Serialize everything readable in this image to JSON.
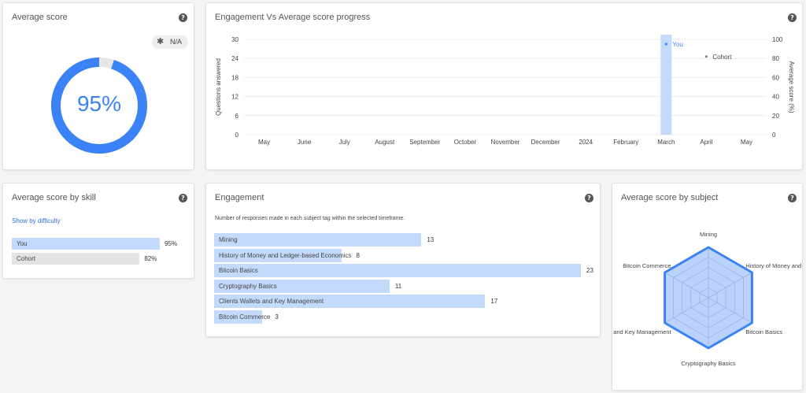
{
  "avg_score_card": {
    "title": "Average score",
    "help": "?",
    "badge_label": "N/A",
    "percent_label": "95%",
    "percent_value": 0.95,
    "ring_color": "#3b82f6"
  },
  "progress_card": {
    "title": "Engagement Vs Average score progress",
    "help": "?"
  },
  "skill_card": {
    "title": "Average score by skill",
    "help": "?",
    "toggle_link": "Show by difficulty",
    "rows": [
      {
        "label": "You",
        "value": 95,
        "value_label": "95%",
        "color": "#c4dafc"
      },
      {
        "label": "Cohort",
        "value": 82,
        "value_label": "82%",
        "color": "#e3e3e3"
      }
    ]
  },
  "engagement_card": {
    "title": "Engagement",
    "help": "?",
    "description": "Number of responses made in each subject tag within the selected timeframe.",
    "rows": [
      {
        "label": "Mining",
        "value": 13
      },
      {
        "label": "History of Money and Ledger-based Economics",
        "value": 8
      },
      {
        "label": "Bitcoin Basics",
        "value": 23
      },
      {
        "label": "Cryptography Basics",
        "value": 11
      },
      {
        "label": "Clients Wallets and Key Management",
        "value": 17
      },
      {
        "label": "Bitcoin Commerce",
        "value": 3
      }
    ]
  },
  "subject_card": {
    "title": "Average score by subject",
    "help": "?"
  },
  "chart_data": [
    {
      "type": "bar",
      "title": "Engagement Vs Average score progress",
      "categories": [
        "May",
        "June",
        "July",
        "August",
        "September",
        "October",
        "November",
        "December",
        "2024",
        "February",
        "March",
        "April",
        "May"
      ],
      "ylabel": "Questions answered",
      "y2label": "Average score (%)",
      "ylim": [
        0,
        30
      ],
      "y2lim": [
        0,
        100
      ],
      "yticks": [
        0,
        6,
        12,
        18,
        24,
        30
      ],
      "y2ticks": [
        0,
        20,
        40,
        60,
        80,
        100
      ],
      "bar_index": 10,
      "bar_value": 30,
      "grid": true,
      "series": [
        {
          "name": "You",
          "x_index": 10,
          "y2": 95,
          "color": "#3b82f6"
        },
        {
          "name": "Cohort",
          "x_index": 11,
          "y2": 82,
          "color": "#888888"
        }
      ]
    },
    {
      "type": "radar",
      "title": "Average score by subject",
      "categories": [
        "Mining",
        "History of Money and Ledger-base",
        "Bitcoin Basics",
        "Cryptography Basics",
        "Wallets and Key Management",
        "Bitcoin Commerce"
      ],
      "values": [
        100,
        100,
        100,
        100,
        100,
        100
      ],
      "rmax": 100,
      "levels": 5,
      "color": "#3b82f6"
    },
    {
      "type": "bar",
      "title": "Engagement",
      "categories": [
        "Mining",
        "History of Money and Ledger-based Economics",
        "Bitcoin Basics",
        "Cryptography Basics",
        "Clients Wallets and Key Management",
        "Bitcoin Commerce"
      ],
      "values": [
        13,
        8,
        23,
        11,
        17,
        3
      ],
      "xlim": [
        0,
        23
      ]
    }
  ]
}
